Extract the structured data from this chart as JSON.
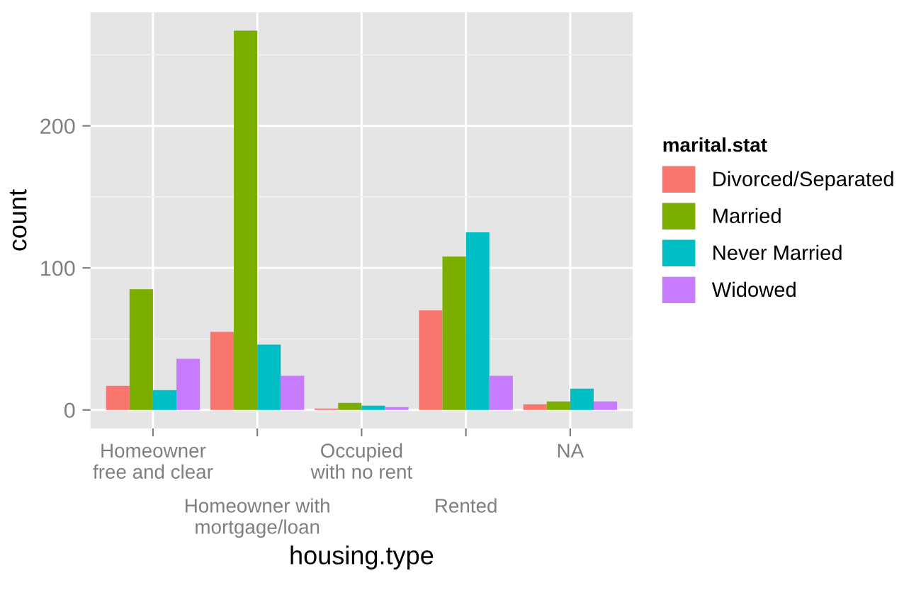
{
  "chart_data": {
    "type": "bar",
    "xlabel": "housing.type",
    "ylabel": "count",
    "legend_title": "marital.stat",
    "categories": [
      "Homeowner free and clear",
      "Homeowner with mortgage/loan",
      "Occupied with no rent",
      "Rented",
      "NA"
    ],
    "series": [
      {
        "name": "Divorced/Separated",
        "color": "#f8766d",
        "values": [
          17,
          55,
          1,
          70,
          4
        ]
      },
      {
        "name": "Married",
        "color": "#7cae00",
        "values": [
          85,
          267,
          5,
          108,
          6
        ]
      },
      {
        "name": "Never Married",
        "color": "#00bfc4",
        "values": [
          14,
          46,
          3,
          125,
          15
        ]
      },
      {
        "name": "Widowed",
        "color": "#c77cff",
        "values": [
          36,
          24,
          2,
          24,
          6
        ]
      }
    ],
    "ylim": [
      -13,
      280
    ],
    "yticks": [
      0,
      100,
      200
    ],
    "grid": true,
    "legend": "right"
  }
}
